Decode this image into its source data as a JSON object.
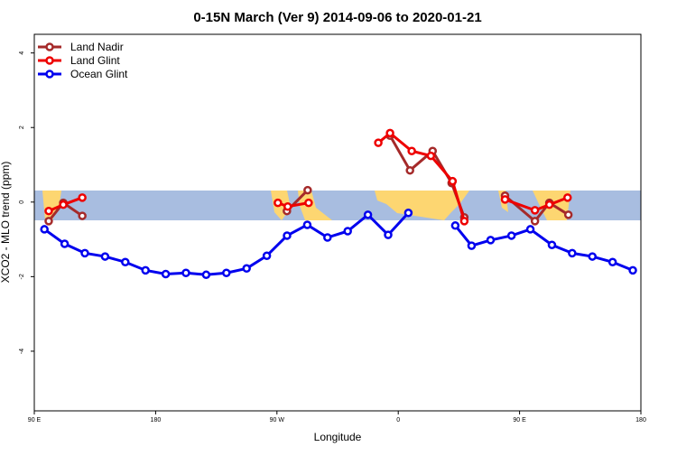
{
  "chart_data": {
    "type": "line",
    "title": "0-15N March (Ver 9)   2014-09-06 to 2020-01-21",
    "x_label": "Longitude",
    "y_label": "XCO2 - MLO trend (ppm)",
    "xlim": [
      90,
      540
    ],
    "ylim": [
      -5.6,
      4.5
    ],
    "xticks": [
      {
        "value": 90,
        "label": "90 E"
      },
      180,
      {
        "value": 270,
        "label": "90 W"
      },
      {
        "value": 360,
        "label": "0"
      },
      {
        "value": 450,
        "label": "90 E"
      },
      {
        "value": 540,
        "label": "180"
      }
    ],
    "yticks": [
      -4,
      -2,
      0,
      2,
      4
    ],
    "legend": "top-left",
    "series": [
      {
        "name": "Land Nadir",
        "color": "#a52a2a",
        "x": [
          100.7,
          111.5,
          125.6,
          null,
          277.4,
          292.8,
          null,
          353.9,
          368.7,
          385.5,
          399.6,
          409.0,
          null,
          439.2,
          461.4,
          472.1,
          486.2
        ],
        "values": [
          -0.51,
          -0.02,
          -0.37,
          null,
          -0.24,
          0.32,
          null,
          1.78,
          0.85,
          1.37,
          0.51,
          -0.41,
          null,
          0.17,
          -0.51,
          -0.02,
          -0.34
        ]
      },
      {
        "name": "Land Glint",
        "color": "#ee0000",
        "x": [
          100.7,
          111.5,
          125.6,
          null,
          270.7,
          278.0,
          293.5,
          null,
          345.2,
          353.9,
          370.0,
          384.2,
          400.3,
          409.0,
          null,
          439.2,
          461.4,
          472.1,
          485.6
        ],
        "values": [
          -0.24,
          -0.07,
          0.12,
          null,
          -0.02,
          -0.12,
          -0.02,
          null,
          1.59,
          1.85,
          1.37,
          1.24,
          0.56,
          -0.51,
          null,
          0.07,
          -0.22,
          -0.07,
          0.12
        ]
      },
      {
        "name": "Ocean Glint",
        "color": "#0000ee",
        "x": [
          97.5,
          112.5,
          127.5,
          142.5,
          157.5,
          172.5,
          187.5,
          202.5,
          217.5,
          232.5,
          247.5,
          262.5,
          277.5,
          292.5,
          307.5,
          322.5,
          337.5,
          352.5,
          367.5,
          null,
          402.3,
          414.4,
          428.5,
          444.0,
          458.0,
          474.0,
          489.0,
          504.0,
          519.0,
          534.0
        ],
        "values": [
          -0.73,
          -1.12,
          -1.37,
          -1.46,
          -1.61,
          -1.83,
          -1.93,
          -1.9,
          -1.95,
          -1.9,
          -1.78,
          -1.44,
          -0.9,
          -0.61,
          -0.95,
          -0.78,
          -0.34,
          -0.88,
          -0.29,
          null,
          -0.63,
          -1.17,
          -1.02,
          -0.9,
          -0.73,
          -1.15,
          -1.37,
          -1.46,
          -1.61,
          -1.83
        ]
      }
    ]
  }
}
